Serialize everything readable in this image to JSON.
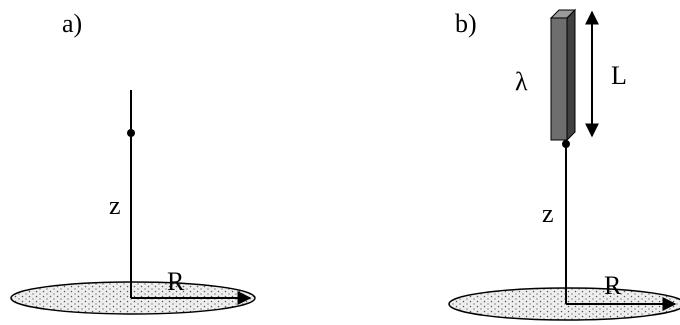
{
  "panel_a": {
    "label": "a)",
    "height_label": "z",
    "radius_label": "R"
  },
  "panel_b": {
    "label": "b)",
    "density_label": "λ",
    "length_label": "L",
    "height_label": "z",
    "radius_label": "R"
  },
  "colors": {
    "ink": "#000000",
    "rod_face": "#6e6e6e",
    "rod_side": "#404040",
    "rod_top": "#9a9a9a",
    "disk_fill": "#eeeeee",
    "stipple": "#555555"
  }
}
